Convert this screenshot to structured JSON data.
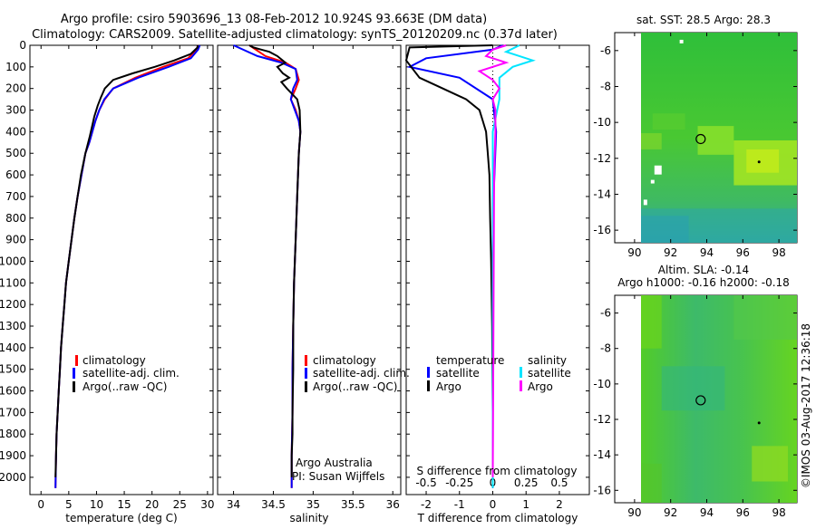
{
  "header": {
    "title_line1": "Argo profile: csiro 5903696_13 08-Feb-2012 10.924S 93.663E (DM data)",
    "title_line2": "Climatology: CARS2009. Satellite-adjusted climatology: synTS_20120209.nc (0.37d later)"
  },
  "colors": {
    "climatology": "#ff0000",
    "satellite": "#0000ff",
    "argo": "#000000",
    "salinity_satellite": "#00e5ff",
    "salinity_argo": "#ff00ff"
  },
  "chart_data": [
    {
      "id": "temperature",
      "type": "line",
      "xlabel": "temperature (deg C)",
      "ylabel": "",
      "xlim": [
        -2,
        31
      ],
      "ylim": [
        2080,
        0
      ],
      "xticks": [
        0,
        5,
        10,
        15,
        20,
        25,
        30
      ],
      "yticks": [
        0,
        100,
        200,
        300,
        400,
        500,
        600,
        700,
        800,
        900,
        1000,
        1100,
        1200,
        1300,
        1400,
        1500,
        1600,
        1700,
        1800,
        1900,
        2000
      ],
      "legend": [
        "climatology",
        "satellite-adj. clim.",
        "Argo(..raw -QC)"
      ],
      "series": [
        {
          "name": "climatology",
          "x": [
            28.3,
            28.0,
            26.5,
            22.0,
            17.0,
            13.0,
            11.5,
            10.5,
            9.8,
            8.7,
            8.0,
            7.3,
            6.6,
            6.0,
            5.5,
            5.0,
            4.5,
            4.2,
            3.9,
            3.6,
            3.4,
            3.2,
            3.0,
            2.8,
            2.7,
            2.6
          ],
          "y": [
            0,
            20,
            60,
            100,
            150,
            200,
            250,
            300,
            350,
            450,
            500,
            600,
            700,
            800,
            900,
            1000,
            1100,
            1200,
            1300,
            1400,
            1500,
            1600,
            1700,
            1800,
            1900,
            2050
          ]
        },
        {
          "name": "satellite-adj. clim.",
          "x": [
            28.6,
            28.3,
            27.0,
            23.0,
            17.5,
            13.0,
            11.4,
            10.5,
            9.8,
            8.7,
            8.0,
            7.3,
            6.6,
            6.0,
            5.5,
            5.0,
            4.5,
            4.2,
            3.9,
            3.6,
            3.4,
            3.2,
            3.0,
            2.8,
            2.7,
            2.6
          ],
          "y": [
            0,
            20,
            60,
            100,
            150,
            200,
            250,
            300,
            350,
            450,
            500,
            600,
            700,
            800,
            900,
            1000,
            1100,
            1200,
            1300,
            1400,
            1500,
            1600,
            1700,
            1800,
            1900,
            2050
          ]
        },
        {
          "name": "Argo(..raw -QC)",
          "x": [
            28.2,
            28.2,
            27.0,
            24.0,
            20.5,
            16.5,
            13.0,
            11.5,
            10.8,
            10.2,
            9.6,
            8.8,
            8.0,
            7.2,
            6.6,
            6.0,
            5.5,
            5.0,
            4.5,
            4.2,
            3.9,
            3.6,
            3.4,
            3.2,
            3.0,
            2.8,
            2.7,
            2.6
          ],
          "y": [
            0,
            10,
            40,
            70,
            100,
            130,
            160,
            200,
            240,
            280,
            330,
            420,
            500,
            600,
            700,
            800,
            900,
            1000,
            1100,
            1200,
            1300,
            1400,
            1500,
            1600,
            1700,
            1800,
            1900,
            2000
          ]
        }
      ]
    },
    {
      "id": "salinity",
      "type": "line",
      "xlabel": "salinity",
      "xlim": [
        33.8,
        36.1
      ],
      "ylim": [
        2080,
        0
      ],
      "xticks": [
        34,
        34.5,
        35,
        35.5,
        36
      ],
      "legend": [
        "climatology",
        "satellite-adj. clim.",
        "Argo(..raw -QC)"
      ],
      "annotations": [
        "Argo Australia",
        "PI: Susan Wijffels"
      ],
      "series": [
        {
          "name": "climatology",
          "x": [
            34.2,
            34.4,
            34.65,
            34.78,
            34.82,
            34.78,
            34.72,
            34.78,
            34.82,
            34.84,
            34.82,
            34.8,
            34.78,
            34.76,
            34.75,
            34.74,
            34.74,
            34.73,
            34.73
          ],
          "y": [
            0,
            50,
            80,
            110,
            160,
            200,
            250,
            300,
            350,
            400,
            500,
            700,
            900,
            1100,
            1300,
            1500,
            1700,
            1900,
            2050
          ]
        },
        {
          "name": "satellite-adj. clim.",
          "x": [
            34.0,
            34.3,
            34.6,
            34.78,
            34.8,
            34.75,
            34.72,
            34.77,
            34.82,
            34.84,
            34.82,
            34.8,
            34.78,
            34.76,
            34.75,
            34.74,
            34.74,
            34.73,
            34.73
          ],
          "y": [
            0,
            50,
            80,
            110,
            160,
            200,
            250,
            300,
            350,
            400,
            500,
            700,
            900,
            1100,
            1300,
            1500,
            1700,
            1900,
            2050
          ]
        },
        {
          "name": "Argo(..raw -QC)",
          "x": [
            34.2,
            34.25,
            34.35,
            34.45,
            34.55,
            34.65,
            34.55,
            34.62,
            34.7,
            34.6,
            34.67,
            34.8,
            34.83,
            34.84,
            34.82,
            34.8,
            34.78,
            34.76,
            34.75,
            34.75,
            34.74,
            34.74,
            34.73,
            34.73
          ],
          "y": [
            0,
            10,
            20,
            30,
            50,
            80,
            100,
            130,
            150,
            170,
            200,
            250,
            300,
            400,
            500,
            700,
            900,
            1100,
            1300,
            1500,
            1700,
            1800,
            1900,
            2000
          ]
        }
      ]
    },
    {
      "id": "difference",
      "type": "line",
      "xlabel": "T difference from climatology",
      "xlabel2": "S difference from climatology",
      "xlim": [
        -2.6,
        2.9
      ],
      "ylim": [
        2080,
        0
      ],
      "xticks": [
        -2,
        -1,
        0,
        1,
        2
      ],
      "xticks_s": [
        -0.5,
        -0.25,
        0,
        0.25,
        0.5
      ],
      "legend_temperature": {
        "title": "temperature",
        "items": [
          "satellite",
          "Argo"
        ]
      },
      "legend_salinity": {
        "title": "salinity",
        "items": [
          "satellite",
          "Argo"
        ]
      },
      "series": [
        {
          "name": "temperature satellite",
          "x": [
            0.3,
            0.0,
            -2.0,
            -2.5,
            -1.0,
            0.0,
            0.1,
            0.0,
            0.0,
            0.0
          ],
          "y": [
            0,
            20,
            60,
            100,
            150,
            250,
            400,
            800,
            1500,
            2050
          ]
        },
        {
          "name": "temperature Argo",
          "x": [
            0.0,
            -2.5,
            -2.6,
            -2.2,
            -1.5,
            -0.8,
            -0.4,
            -0.3,
            -0.2,
            -0.15,
            -0.1,
            -0.08,
            -0.05,
            -0.02,
            0.0,
            0.0
          ],
          "y": [
            0,
            10,
            70,
            150,
            200,
            250,
            300,
            350,
            400,
            500,
            600,
            800,
            1000,
            1300,
            1700,
            2000
          ]
        },
        {
          "name": "salinity satellite",
          "x": [
            0.2,
            0.1,
            0.3,
            0.15,
            0.05,
            0.05,
            0.0,
            0.0,
            0.0,
            0.0
          ],
          "y": [
            0,
            30,
            70,
            100,
            150,
            250,
            400,
            800,
            1500,
            2050
          ]
        },
        {
          "name": "salinity Argo",
          "x": [
            0.1,
            0.0,
            -0.05,
            0.1,
            -0.1,
            0.0,
            0.05,
            0.0,
            0.02,
            0.02,
            0.01,
            0.0
          ],
          "y": [
            0,
            20,
            50,
            80,
            120,
            160,
            200,
            250,
            300,
            400,
            600,
            2000
          ]
        }
      ]
    },
    {
      "id": "sst_map",
      "type": "heatmap",
      "title": "sat. SST: 28.5 Argo: 28.3",
      "xticks": [
        90,
        92,
        94,
        96,
        98
      ],
      "yticks": [
        -6,
        -8,
        -10,
        -12,
        -14,
        -16
      ],
      "xlim": [
        88.9,
        99.0
      ],
      "ylim": [
        -5.0,
        -16.7
      ]
    },
    {
      "id": "sla_map",
      "type": "heatmap",
      "title_line1": "Altim. SLA: -0.14",
      "title_line2": "Argo h1000: -0.16 h2000: -0.18",
      "xticks": [
        90,
        92,
        94,
        96,
        98
      ],
      "yticks": [
        -6,
        -8,
        -10,
        -12,
        -14,
        -16
      ],
      "xlim": [
        88.9,
        99.0
      ],
      "ylim": [
        -5.0,
        -16.7
      ]
    }
  ],
  "markers": {
    "profile_position": {
      "lon": 93.663,
      "lat": -10.924
    },
    "secondary_position": {
      "lon": 96.9,
      "lat": -12.2
    }
  },
  "footer": {
    "credit": "©IMOS 03-Aug-2017 12:36:18"
  }
}
